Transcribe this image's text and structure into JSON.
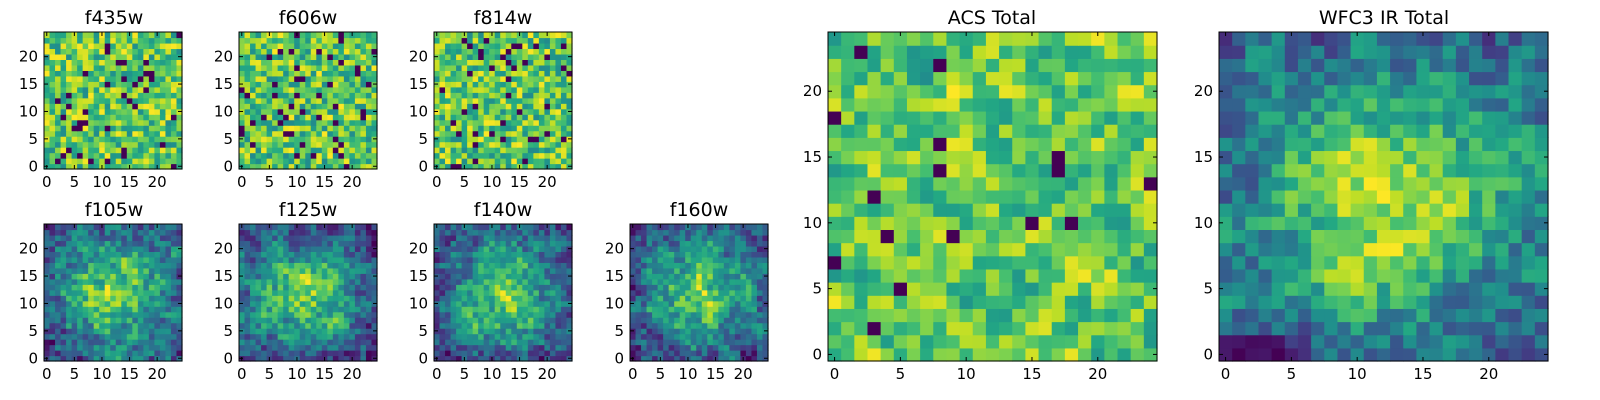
{
  "figure": {
    "description_colormap": "viridis",
    "colors": {
      "low": "#440154",
      "mid": "#21918c",
      "high": "#fde725"
    }
  },
  "chart_data": [
    {
      "type": "heatmap",
      "title": "f435w",
      "grid_size": 25,
      "xticks": [
        "0",
        "5",
        "10",
        "15",
        "20"
      ],
      "yticks": [
        "0",
        "5",
        "10",
        "15",
        "20"
      ],
      "xlim": [
        0,
        24
      ],
      "ylim": [
        0,
        24
      ],
      "pattern": "noise",
      "seed": 11
    },
    {
      "type": "heatmap",
      "title": "f606w",
      "grid_size": 25,
      "xticks": [
        "0",
        "5",
        "10",
        "15",
        "20"
      ],
      "yticks": [
        "0",
        "5",
        "10",
        "15",
        "20"
      ],
      "xlim": [
        0,
        24
      ],
      "ylim": [
        0,
        24
      ],
      "pattern": "noise",
      "seed": 23
    },
    {
      "type": "heatmap",
      "title": "f814w",
      "grid_size": 25,
      "xticks": [
        "0",
        "5",
        "10",
        "15",
        "20"
      ],
      "yticks": [
        "0",
        "5",
        "10",
        "15",
        "20"
      ],
      "xlim": [
        0,
        24
      ],
      "ylim": [
        0,
        24
      ],
      "pattern": "noise",
      "seed": 37
    },
    {
      "type": "heatmap",
      "title": "f105w",
      "grid_size": 25,
      "xticks": [
        "0",
        "5",
        "10",
        "15",
        "20"
      ],
      "yticks": [
        "0",
        "5",
        "10",
        "15",
        "20"
      ],
      "xlim": [
        0,
        24
      ],
      "ylim": [
        0,
        24
      ],
      "pattern": "source",
      "seed": 41
    },
    {
      "type": "heatmap",
      "title": "f125w",
      "grid_size": 25,
      "xticks": [
        "0",
        "5",
        "10",
        "15",
        "20"
      ],
      "yticks": [
        "0",
        "5",
        "10",
        "15",
        "20"
      ],
      "xlim": [
        0,
        24
      ],
      "ylim": [
        0,
        24
      ],
      "pattern": "source",
      "seed": 53
    },
    {
      "type": "heatmap",
      "title": "f140w",
      "grid_size": 25,
      "xticks": [
        "0",
        "5",
        "10",
        "15",
        "20"
      ],
      "yticks": [
        "0",
        "5",
        "10",
        "15",
        "20"
      ],
      "xlim": [
        0,
        24
      ],
      "ylim": [
        0,
        24
      ],
      "pattern": "source",
      "seed": 67
    },
    {
      "type": "heatmap",
      "title": "f160w",
      "grid_size": 25,
      "xticks": [
        "0",
        "5",
        "10",
        "15",
        "20"
      ],
      "yticks": [
        "0",
        "5",
        "10",
        "15",
        "20"
      ],
      "xlim": [
        0,
        24
      ],
      "ylim": [
        0,
        24
      ],
      "pattern": "source",
      "seed": 79
    },
    {
      "type": "heatmap",
      "title": "ACS Total",
      "grid_size": 25,
      "xticks": [
        "0",
        "5",
        "10",
        "15",
        "20"
      ],
      "yticks": [
        "0",
        "5",
        "10",
        "15",
        "20"
      ],
      "xlim": [
        0,
        24
      ],
      "ylim": [
        0,
        24
      ],
      "pattern": "noise_smooth",
      "seed": 89
    },
    {
      "type": "heatmap",
      "title": "WFC3 IR Total",
      "grid_size": 25,
      "xticks": [
        "0",
        "5",
        "10",
        "15",
        "20"
      ],
      "yticks": [
        "0",
        "5",
        "10",
        "15",
        "20"
      ],
      "xlim": [
        0,
        24
      ],
      "ylim": [
        0,
        24
      ],
      "pattern": "source_smooth",
      "seed": 97
    }
  ]
}
